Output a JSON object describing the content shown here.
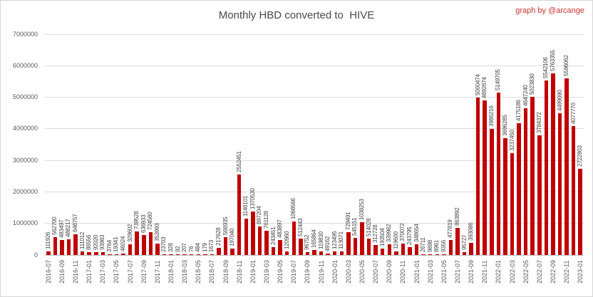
{
  "chart_data": {
    "type": "bar",
    "title": "Monthly HBD converted to  HIVE",
    "credit": "graph by @arcange",
    "bar_color": "#c00000",
    "credit_color": "#cc3232",
    "gridline_color": "#dcdcdc",
    "ylim": [
      0,
      7000000
    ],
    "y_ticks": [
      0,
      1000000,
      2000000,
      3000000,
      4000000,
      5000000,
      6000000,
      7000000
    ],
    "y_tick_labels": [
      "0",
      "1000000",
      "2000000",
      "3000000",
      "4000000",
      "5000000",
      "6000000",
      "7000000"
    ],
    "x_label_every": 2,
    "legend": "none",
    "grid": "horizontal",
    "categories": [
      "2016-07",
      "2016-08",
      "2016-09",
      "2016-10",
      "2016-11",
      "2016-12",
      "2017-01",
      "2017-02",
      "2017-03",
      "2017-04",
      "2017-05",
      "2017-06",
      "2017-07",
      "2017-08",
      "2017-09",
      "2017-10",
      "2017-11",
      "2017-12",
      "2018-01",
      "2018-02",
      "2018-03",
      "2018-04",
      "2018-05",
      "2018-06",
      "2018-07",
      "2018-08",
      "2018-09",
      "2018-10",
      "2018-11",
      "2018-12",
      "2019-01",
      "2019-02",
      "2019-03",
      "2019-04",
      "2019-05",
      "2019-06",
      "2019-07",
      "2019-08",
      "2019-09",
      "2019-10",
      "2019-11",
      "2019-12",
      "2020-01",
      "2020-02",
      "2020-03",
      "2020-04",
      "2020-05",
      "2020-06",
      "2020-07",
      "2020-08",
      "2020-09",
      "2020-10",
      "2020-11",
      "2020-12",
      "2021-01",
      "2021-02",
      "2021-03",
      "2021-04",
      "2021-05",
      "2021-06",
      "2021-07",
      "2021-08",
      "2021-09",
      "2021-10",
      "2021-11",
      "2021-12",
      "2022-01",
      "2022-02",
      "2022-03",
      "2022-04",
      "2022-05",
      "2022-06",
      "2022-07",
      "2022-08",
      "2022-09",
      "2022-10",
      "2022-11",
      "2022-12",
      "2023-01"
    ],
    "values": [
      111926,
      562700,
      483497,
      488217,
      648757,
      111012,
      86556,
      92020,
      93983,
      3764,
      19341,
      46024,
      329602,
      739528,
      636933,
      724560,
      353993,
      23703,
      328,
      92,
      207,
      76,
      484,
      179,
      1673,
      217628,
      566935,
      197040,
      2552451,
      1146101,
      1370530,
      897204,
      761128,
      243451,
      483897,
      120960,
      1068566,
      512443,
      96752,
      165864,
      119830,
      49162,
      123495,
      113071,
      729491,
      545151,
      1038253,
      514028,
      312728,
      193504,
      339962,
      119600,
      370072,
      243795,
      348654,
      26711,
      9898,
      8961,
      9356,
      477819,
      863892,
      95727,
      393086,
      5000474,
      4892674,
      3986216,
      5149705,
      3696285,
      3237450,
      4175186,
      4647240,
      5023830,
      3784372,
      5542106,
      5763355,
      4499090,
      5596062,
      4077770,
      2722803
    ]
  }
}
